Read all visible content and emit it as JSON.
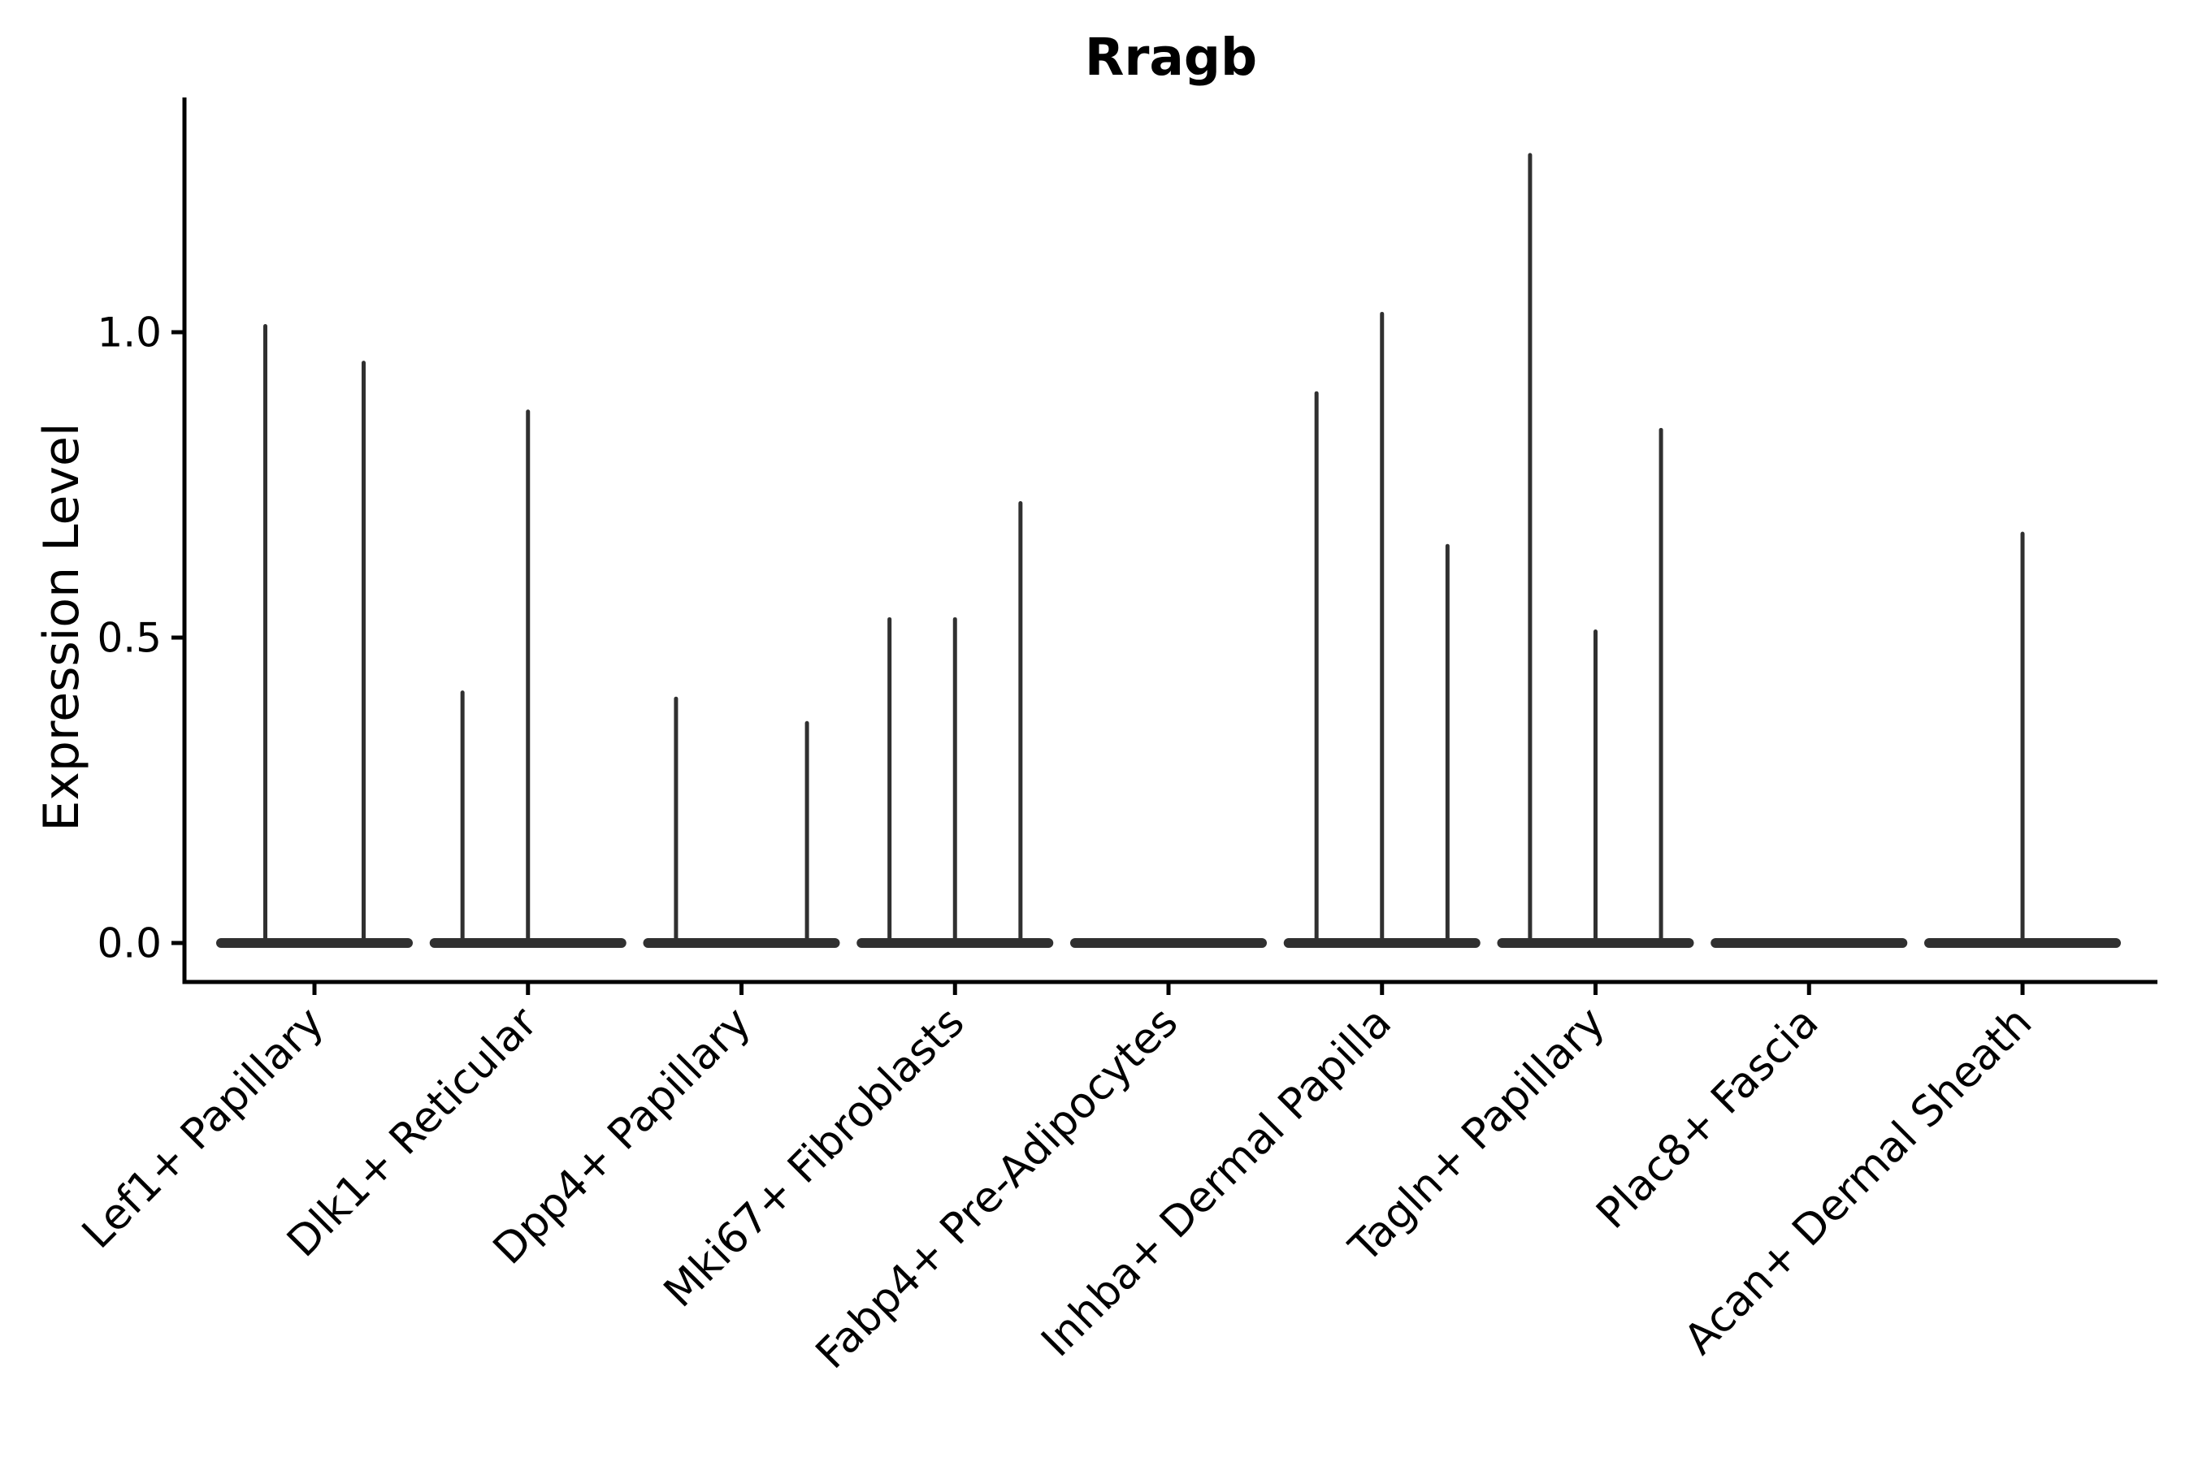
{
  "chart_data": {
    "type": "violin",
    "title": "Rragb",
    "ylabel": "Expression Level",
    "xlabel": "",
    "yticks": [
      "0.0",
      "0.5",
      "1.0"
    ],
    "ytick_values": [
      0.0,
      0.5,
      1.0
    ],
    "ylim": [
      -0.064,
      1.384
    ],
    "grid": "off",
    "legend": "none",
    "violin_color": "#303030",
    "axis_color": "#000000",
    "background_color": "#ffffff",
    "categories": [
      {
        "label": "Lef1+ Papillary",
        "violins": [
          {
            "offset": -0.25,
            "max": 1.01
          },
          {
            "offset": 0.25,
            "max": 0.95
          }
        ]
      },
      {
        "label": "Dlk1+ Reticular",
        "violins": [
          {
            "offset": -0.333,
            "max": 0.41
          },
          {
            "offset": 0,
            "max": 0.87
          },
          {
            "offset": 0.333,
            "max": 0
          }
        ]
      },
      {
        "label": "Dpp4+ Papillary",
        "violins": [
          {
            "offset": -0.333,
            "max": 0.4
          },
          {
            "offset": 0,
            "max": 0
          },
          {
            "offset": 0.333,
            "max": 0.36
          }
        ]
      },
      {
        "label": "Mki67+ Fibroblasts",
        "violins": [
          {
            "offset": -0.333,
            "max": 0.53
          },
          {
            "offset": 0,
            "max": 0.53
          },
          {
            "offset": 0.333,
            "max": 0.72
          }
        ]
      },
      {
        "label": "Fabp4+ Pre-Adipocytes",
        "violins": [
          {
            "offset": -0.333,
            "max": 0
          },
          {
            "offset": 0,
            "max": 0
          },
          {
            "offset": 0.333,
            "max": 0
          }
        ]
      },
      {
        "label": "Inhba+ Dermal Papilla",
        "violins": [
          {
            "offset": -0.333,
            "max": 0.9
          },
          {
            "offset": 0,
            "max": 1.03
          },
          {
            "offset": 0.333,
            "max": 0.65
          }
        ]
      },
      {
        "label": "Tagln+ Papillary",
        "violins": [
          {
            "offset": -0.333,
            "max": 1.29
          },
          {
            "offset": 0,
            "max": 0.51
          },
          {
            "offset": 0.333,
            "max": 0.84
          }
        ]
      },
      {
        "label": "Plac8+ Fascia",
        "violins": [
          {
            "offset": -0.333,
            "max": 0
          },
          {
            "offset": 0,
            "max": 0
          },
          {
            "offset": 0.333,
            "max": 0
          }
        ]
      },
      {
        "label": "Acan+ Dermal Sheath",
        "violins": [
          {
            "offset": 0,
            "max": 0.67
          }
        ]
      }
    ]
  }
}
